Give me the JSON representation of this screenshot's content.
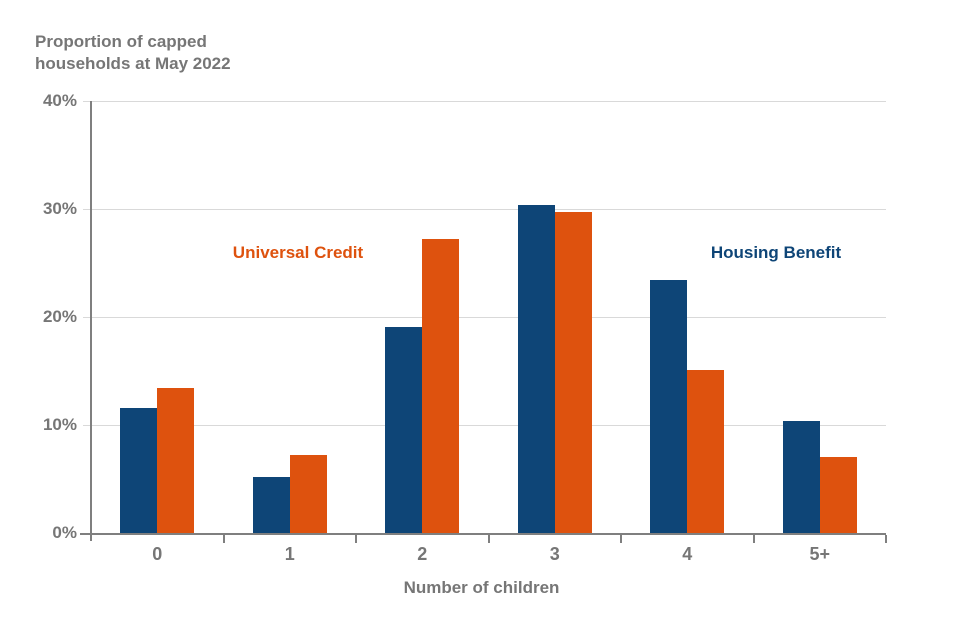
{
  "chart_data": {
    "type": "bar",
    "title": "Proportion of capped households at May 2022",
    "xlabel": "Number of children",
    "categories": [
      "0",
      "1",
      "2",
      "3",
      "4",
      "5+"
    ],
    "series": [
      {
        "name": "Housing Benefit",
        "color": "#0e4577",
        "values": [
          11.6,
          5.2,
          19.1,
          30.4,
          23.4,
          10.4
        ]
      },
      {
        "name": "Universal Credit",
        "color": "#de520e",
        "values": [
          13.4,
          7.2,
          27.2,
          29.7,
          15.1,
          7.0
        ]
      }
    ],
    "ylim": [
      0,
      40
    ],
    "yticks": [
      40,
      30,
      20,
      10,
      0
    ],
    "ytick_labels": [
      "40%",
      "30%",
      "20%",
      "10%",
      "0%"
    ],
    "grid": true,
    "legend_position": "inline annotations",
    "annotations": [
      {
        "text": "Universal Credit",
        "color": "#de520e"
      },
      {
        "text": "Housing Benefit",
        "color": "#0e4577"
      }
    ],
    "text_color": "#767676",
    "axis_color": "#7f7f7f",
    "gridline_color": "#d9d9d9",
    "background_color": "#ffffff"
  }
}
